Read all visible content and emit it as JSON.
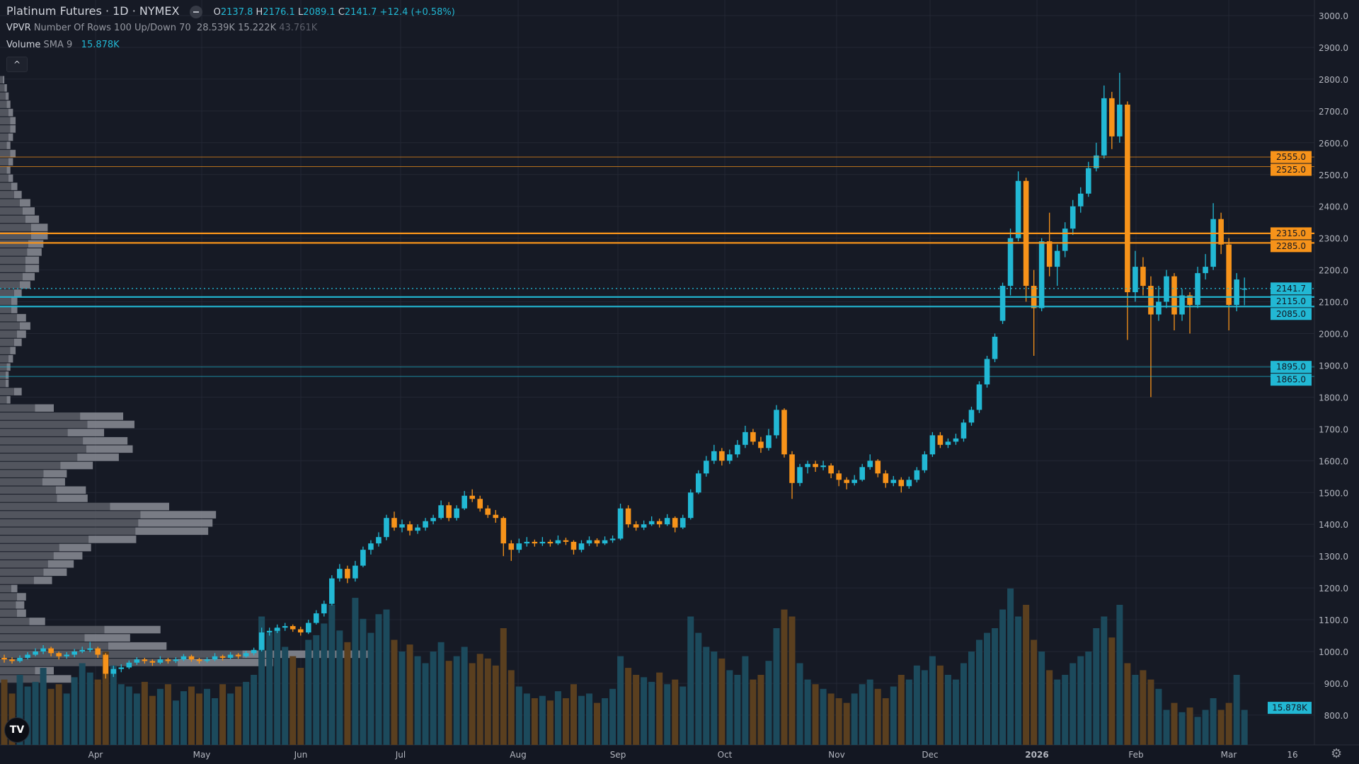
{
  "header": {
    "symbol": "Platinum Futures · 1D · NYMEX",
    "open_label": "O",
    "open": "2137.8",
    "high_label": "H",
    "high": "2176.1",
    "low_label": "L",
    "low": "2089.1",
    "close_label": "C",
    "close": "2141.7",
    "change": "+12.4 (+0.58%)"
  },
  "vpvr_legend": {
    "name": "VPVR",
    "params": "Number Of Rows 100 Up/Down 70",
    "up": "28.539K",
    "down": "15.222K",
    "total": "43.761K"
  },
  "volume_legend": {
    "name": "Volume",
    "params": "SMA 9",
    "value": "15.878K"
  },
  "collapse_label": "^",
  "logo_text": "TV",
  "settings_icon": "gear-icon",
  "colors": {
    "up": "#22b8d4",
    "down": "#f7931a",
    "vol_up": "#1c4a5c",
    "vol_down": "#5a3f1f",
    "background": "#161a25"
  },
  "chart_data": {
    "type": "candlestick",
    "price_axis": {
      "ylim": [
        800,
        3000
      ],
      "ticks": [
        "3000.0",
        "2900.0",
        "2800.0",
        "2700.0",
        "2600.0",
        "2500.0",
        "2400.0",
        "2300.0",
        "2200.0",
        "2100.0",
        "2000.0",
        "1900.0",
        "1800.0",
        "1700.0",
        "1600.0",
        "1500.0",
        "1400.0",
        "1300.0",
        "1200.0",
        "1100.0",
        "1000.0",
        "900.0",
        "800.0"
      ]
    },
    "time_axis": {
      "labels": [
        "Apr",
        "May",
        "Jun",
        "Jul",
        "Aug",
        "Sep",
        "Oct",
        "Nov",
        "Dec",
        "2026",
        "Feb",
        "Mar",
        "16"
      ]
    },
    "candles": [
      [
        980,
        990,
        965,
        975
      ],
      [
        975,
        982,
        962,
        970
      ],
      [
        970,
        988,
        965,
        980
      ],
      [
        980,
        998,
        975,
        990
      ],
      [
        990,
        1010,
        985,
        1000
      ],
      [
        1000,
        1020,
        992,
        1010
      ],
      [
        1010,
        1015,
        985,
        995
      ],
      [
        995,
        1000,
        975,
        985
      ],
      [
        985,
        998,
        978,
        990
      ],
      [
        990,
        1008,
        982,
        1000
      ],
      [
        1000,
        1015,
        995,
        1005
      ],
      [
        1005,
        1030,
        998,
        1010
      ],
      [
        1010,
        1015,
        980,
        990
      ],
      [
        990,
        995,
        915,
        930
      ],
      [
        930,
        955,
        920,
        945
      ],
      [
        945,
        960,
        935,
        950
      ],
      [
        950,
        972,
        945,
        965
      ],
      [
        965,
        982,
        958,
        975
      ],
      [
        975,
        980,
        962,
        970
      ],
      [
        970,
        975,
        955,
        965
      ],
      [
        965,
        985,
        960,
        975
      ],
      [
        975,
        980,
        962,
        970
      ],
      [
        970,
        982,
        964,
        975
      ],
      [
        975,
        992,
        970,
        985
      ],
      [
        985,
        990,
        968,
        975
      ],
      [
        975,
        980,
        962,
        970
      ],
      [
        970,
        982,
        965,
        975
      ],
      [
        975,
        995,
        970,
        985
      ],
      [
        985,
        990,
        972,
        980
      ],
      [
        980,
        998,
        975,
        990
      ],
      [
        990,
        995,
        978,
        985
      ],
      [
        985,
        1002,
        980,
        995
      ],
      [
        995,
        1012,
        988,
        1005
      ],
      [
        1005,
        1075,
        1000,
        1060
      ],
      [
        1060,
        1075,
        1050,
        1065
      ],
      [
        1065,
        1085,
        1058,
        1075
      ],
      [
        1075,
        1090,
        1065,
        1080
      ],
      [
        1080,
        1085,
        1062,
        1070
      ],
      [
        1070,
        1078,
        1050,
        1060
      ],
      [
        1060,
        1100,
        1055,
        1090
      ],
      [
        1090,
        1130,
        1085,
        1120
      ],
      [
        1120,
        1160,
        1110,
        1150
      ],
      [
        1150,
        1240,
        1145,
        1230
      ],
      [
        1230,
        1275,
        1220,
        1260
      ],
      [
        1260,
        1270,
        1215,
        1230
      ],
      [
        1230,
        1285,
        1220,
        1270
      ],
      [
        1270,
        1330,
        1265,
        1320
      ],
      [
        1320,
        1350,
        1305,
        1340
      ],
      [
        1340,
        1375,
        1330,
        1360
      ],
      [
        1360,
        1430,
        1350,
        1420
      ],
      [
        1420,
        1440,
        1380,
        1390
      ],
      [
        1390,
        1415,
        1375,
        1400
      ],
      [
        1400,
        1410,
        1365,
        1380
      ],
      [
        1380,
        1400,
        1370,
        1390
      ],
      [
        1390,
        1420,
        1380,
        1410
      ],
      [
        1410,
        1430,
        1400,
        1420
      ],
      [
        1420,
        1475,
        1415,
        1460
      ],
      [
        1460,
        1470,
        1410,
        1420
      ],
      [
        1420,
        1460,
        1412,
        1450
      ],
      [
        1450,
        1505,
        1445,
        1490
      ],
      [
        1490,
        1510,
        1470,
        1480
      ],
      [
        1480,
        1490,
        1440,
        1450
      ],
      [
        1450,
        1460,
        1420,
        1430
      ],
      [
        1430,
        1445,
        1405,
        1420
      ],
      [
        1420,
        1425,
        1300,
        1340
      ],
      [
        1340,
        1350,
        1285,
        1320
      ],
      [
        1320,
        1355,
        1310,
        1340
      ],
      [
        1340,
        1360,
        1330,
        1345
      ],
      [
        1345,
        1352,
        1330,
        1340
      ],
      [
        1340,
        1360,
        1332,
        1345
      ],
      [
        1345,
        1352,
        1330,
        1340
      ],
      [
        1340,
        1365,
        1335,
        1350
      ],
      [
        1350,
        1358,
        1335,
        1345
      ],
      [
        1345,
        1350,
        1305,
        1320
      ],
      [
        1320,
        1350,
        1312,
        1340
      ],
      [
        1340,
        1362,
        1332,
        1350
      ],
      [
        1350,
        1356,
        1330,
        1340
      ],
      [
        1340,
        1362,
        1335,
        1350
      ],
      [
        1350,
        1365,
        1342,
        1355
      ],
      [
        1355,
        1465,
        1350,
        1450
      ],
      [
        1450,
        1460,
        1390,
        1400
      ],
      [
        1400,
        1410,
        1380,
        1390
      ],
      [
        1390,
        1412,
        1382,
        1400
      ],
      [
        1400,
        1425,
        1395,
        1410
      ],
      [
        1410,
        1418,
        1390,
        1400
      ],
      [
        1400,
        1432,
        1395,
        1420
      ],
      [
        1420,
        1425,
        1375,
        1390
      ],
      [
        1390,
        1430,
        1385,
        1420
      ],
      [
        1420,
        1510,
        1415,
        1500
      ],
      [
        1500,
        1570,
        1495,
        1560
      ],
      [
        1560,
        1615,
        1550,
        1600
      ],
      [
        1600,
        1650,
        1590,
        1630
      ],
      [
        1630,
        1640,
        1585,
        1600
      ],
      [
        1600,
        1635,
        1590,
        1620
      ],
      [
        1620,
        1665,
        1610,
        1650
      ],
      [
        1650,
        1710,
        1640,
        1690
      ],
      [
        1690,
        1700,
        1650,
        1660
      ],
      [
        1660,
        1675,
        1625,
        1640
      ],
      [
        1640,
        1700,
        1632,
        1680
      ],
      [
        1680,
        1775,
        1670,
        1760
      ],
      [
        1760,
        1765,
        1610,
        1620
      ],
      [
        1620,
        1630,
        1480,
        1530
      ],
      [
        1530,
        1590,
        1520,
        1580
      ],
      [
        1580,
        1600,
        1560,
        1590
      ],
      [
        1590,
        1600,
        1565,
        1580
      ],
      [
        1580,
        1600,
        1570,
        1585
      ],
      [
        1585,
        1592,
        1545,
        1560
      ],
      [
        1560,
        1570,
        1520,
        1540
      ],
      [
        1540,
        1548,
        1510,
        1530
      ],
      [
        1530,
        1555,
        1522,
        1540
      ],
      [
        1540,
        1590,
        1535,
        1580
      ],
      [
        1580,
        1620,
        1572,
        1600
      ],
      [
        1600,
        1605,
        1548,
        1560
      ],
      [
        1560,
        1570,
        1515,
        1530
      ],
      [
        1530,
        1552,
        1520,
        1540
      ],
      [
        1540,
        1548,
        1500,
        1520
      ],
      [
        1520,
        1550,
        1512,
        1540
      ],
      [
        1540,
        1580,
        1532,
        1570
      ],
      [
        1570,
        1630,
        1562,
        1620
      ],
      [
        1620,
        1690,
        1612,
        1680
      ],
      [
        1680,
        1690,
        1640,
        1650
      ],
      [
        1650,
        1670,
        1640,
        1660
      ],
      [
        1660,
        1685,
        1650,
        1670
      ],
      [
        1670,
        1730,
        1660,
        1720
      ],
      [
        1720,
        1770,
        1710,
        1760
      ],
      [
        1760,
        1850,
        1750,
        1840
      ],
      [
        1840,
        1930,
        1830,
        1920
      ],
      [
        1920,
        2000,
        1910,
        1990
      ],
      [
        2040,
        2160,
        2030,
        2150
      ],
      [
        2150,
        2330,
        2120,
        2300
      ],
      [
        2300,
        2510,
        2290,
        2480
      ],
      [
        2480,
        2490,
        2100,
        2150
      ],
      [
        2150,
        2200,
        1930,
        2080
      ],
      [
        2080,
        2300,
        2070,
        2290
      ],
      [
        2290,
        2380,
        2180,
        2210
      ],
      [
        2210,
        2280,
        2150,
        2260
      ],
      [
        2260,
        2350,
        2240,
        2330
      ],
      [
        2330,
        2420,
        2310,
        2400
      ],
      [
        2400,
        2460,
        2380,
        2440
      ],
      [
        2440,
        2540,
        2430,
        2520
      ],
      [
        2520,
        2600,
        2510,
        2560
      ],
      [
        2560,
        2780,
        2550,
        2740
      ],
      [
        2740,
        2760,
        2580,
        2620
      ],
      [
        2620,
        2820,
        2600,
        2720
      ],
      [
        2720,
        2730,
        1980,
        2130
      ],
      [
        2130,
        2260,
        2100,
        2210
      ],
      [
        2210,
        2240,
        2120,
        2150
      ],
      [
        2150,
        2180,
        1800,
        2060
      ],
      [
        2060,
        2150,
        2040,
        2100
      ],
      [
        2100,
        2200,
        2080,
        2180
      ],
      [
        2180,
        2190,
        2010,
        2060
      ],
      [
        2060,
        2140,
        2040,
        2120
      ],
      [
        2120,
        2130,
        2000,
        2090
      ],
      [
        2090,
        2210,
        2080,
        2190
      ],
      [
        2190,
        2250,
        2170,
        2210
      ],
      [
        2210,
        2410,
        2200,
        2360
      ],
      [
        2360,
        2380,
        2250,
        2280
      ],
      [
        2280,
        2300,
        2010,
        2090
      ],
      [
        2090,
        2190,
        2070,
        2170
      ],
      [
        2137.8,
        2176.1,
        2089.1,
        2141.7
      ]
    ],
    "volume_k": [
      28,
      22,
      30,
      25,
      27,
      33,
      24,
      26,
      22,
      29,
      35,
      31,
      28,
      40,
      34,
      26,
      25,
      22,
      27,
      21,
      24,
      26,
      19,
      23,
      25,
      22,
      24,
      20,
      26,
      22,
      25,
      27,
      30,
      55,
      48,
      50,
      42,
      38,
      33,
      45,
      47,
      52,
      60,
      49,
      44,
      63,
      54,
      48,
      56,
      58,
      45,
      40,
      43,
      38,
      35,
      40,
      44,
      36,
      38,
      42,
      35,
      39,
      37,
      34,
      50,
      32,
      25,
      22,
      20,
      21,
      19,
      23,
      20,
      26,
      21,
      22,
      18,
      20,
      24,
      38,
      33,
      30,
      29,
      27,
      31,
      26,
      28,
      25,
      55,
      48,
      42,
      40,
      37,
      32,
      30,
      38,
      28,
      30,
      36,
      50,
      58,
      55,
      35,
      28,
      26,
      24,
      22,
      20,
      18,
      22,
      26,
      28,
      24,
      20,
      25,
      30,
      28,
      34,
      32,
      38,
      34,
      30,
      28,
      35,
      40,
      45,
      48,
      50,
      58,
      67,
      55,
      60,
      45,
      40,
      32,
      28,
      30,
      35,
      38,
      40,
      50,
      55,
      46,
      60,
      35,
      30,
      32,
      28,
      24,
      15,
      18,
      14,
      16,
      12,
      15,
      20,
      15,
      18,
      30,
      15
    ],
    "volume_sma_k": 15.878,
    "volume_profile": {
      "price_range": [
        900,
        2810
      ],
      "rows_top_to_bottom_total": [
        5,
        8,
        10,
        12,
        15,
        18,
        18,
        15,
        12,
        18,
        15,
        12,
        15,
        20,
        25,
        35,
        40,
        45,
        55,
        55,
        50,
        48,
        45,
        45,
        40,
        35,
        25,
        20,
        20,
        30,
        35,
        30,
        25,
        18,
        15,
        12,
        10,
        10,
        25,
        12,
        62,
        142,
        155,
        120,
        147,
        153,
        137,
        107,
        77,
        75,
        99,
        101,
        195,
        249,
        245,
        240,
        157,
        105,
        95,
        85,
        77,
        60,
        20,
        30,
        28,
        30,
        52,
        185,
        150,
        192,
        430,
        315,
        62,
        82
      ],
      "up_share": 0.65
    },
    "levels": [
      {
        "price": "2555.0",
        "color": "#f7931a",
        "style": "thin"
      },
      {
        "price": "2525.0",
        "color": "#f7931a",
        "style": "thin"
      },
      {
        "price": "2315.0",
        "color": "#f7931a",
        "style": "thick"
      },
      {
        "price": "2285.0",
        "color": "#f7931a",
        "style": "thick"
      },
      {
        "price": "2141.7",
        "color": "#22b8d4",
        "style": "dotted"
      },
      {
        "price": "2115.0",
        "color": "#22b8d4",
        "style": "thick"
      },
      {
        "price": "2085.0",
        "color": "#22b8d4",
        "style": "thick"
      },
      {
        "price": "1895.0",
        "color": "#22b8d4",
        "style": "thin"
      },
      {
        "price": "1865.0",
        "color": "#22b8d4",
        "style": "thin"
      }
    ],
    "volume_label": "15.878K"
  }
}
